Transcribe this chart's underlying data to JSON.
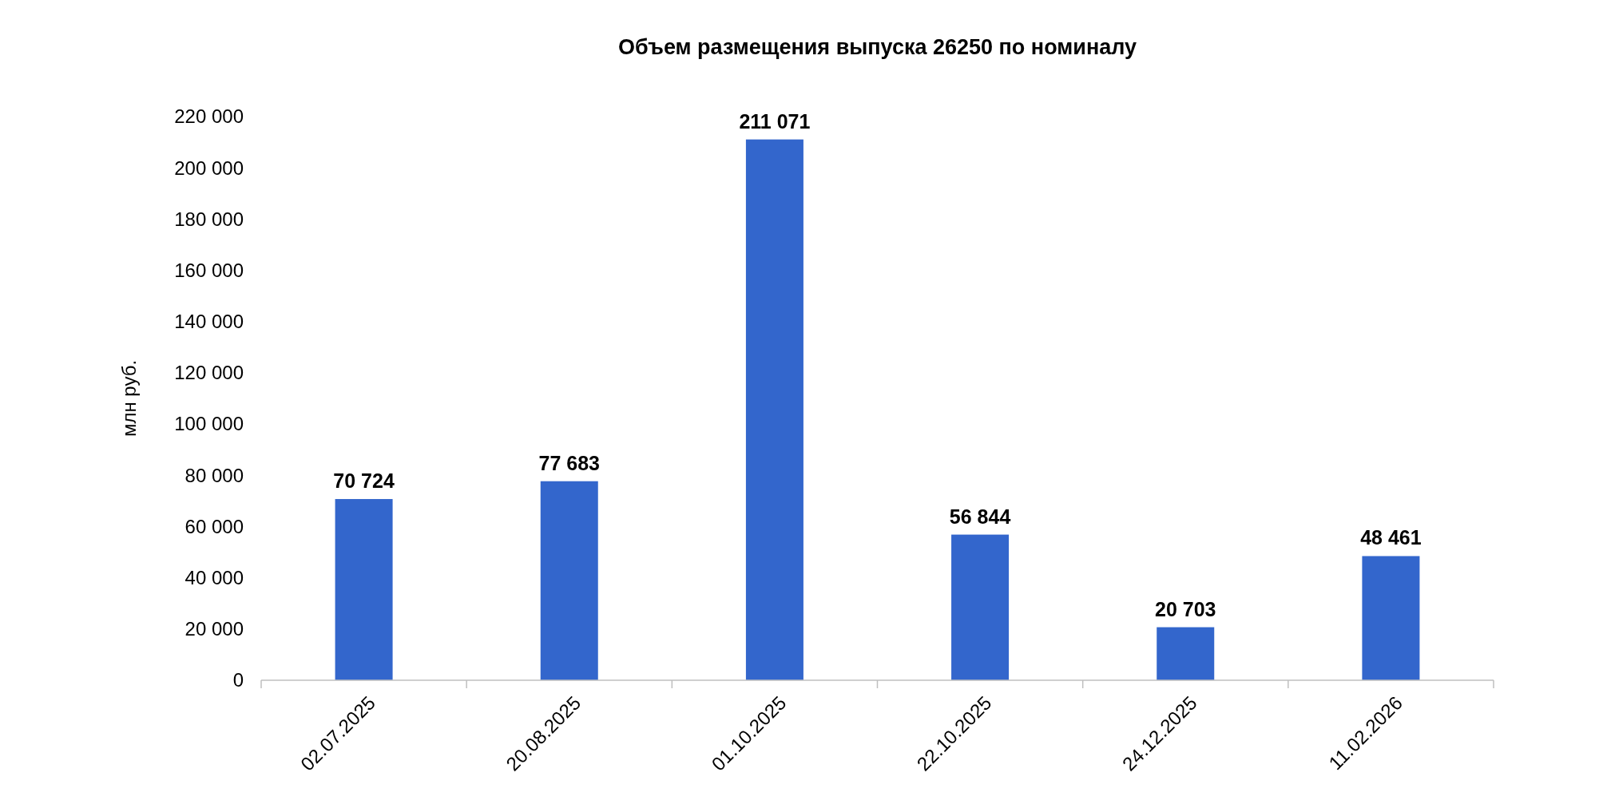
{
  "chart_data": {
    "type": "bar",
    "title": "Объем размещения выпуска 26250 по номиналу",
    "ylabel": "млн руб.",
    "categories": [
      "02.07.2025",
      "20.08.2025",
      "01.10.2025",
      "22.10.2025",
      "24.12.2025",
      "11.02.2026"
    ],
    "values": [
      70724,
      77683,
      211071,
      56844,
      20703,
      48461
    ],
    "value_labels": [
      "70 724",
      "77 683",
      "211 071",
      "56 844",
      "20 703",
      "48 461"
    ],
    "color": "#3366cc",
    "ylim": [
      0,
      220000
    ],
    "yticks": [
      0,
      {
        "value": 20000,
        "label": "20 000"
      },
      {
        "value": 40000,
        "label": "40 000"
      },
      {
        "value": 60000,
        "label": "60 000"
      },
      {
        "value": 80000,
        "label": "80 000"
      },
      {
        "value": 100000,
        "label": "100 000"
      },
      {
        "value": 120000,
        "label": "120 000"
      },
      {
        "value": 140000,
        "label": "140 000"
      },
      {
        "value": 160000,
        "label": "160 000"
      },
      {
        "value": 180000,
        "label": "180 000"
      },
      {
        "value": 200000,
        "label": "200 000"
      },
      {
        "value": 220000,
        "label": "220 000"
      }
    ],
    "grid": false
  }
}
